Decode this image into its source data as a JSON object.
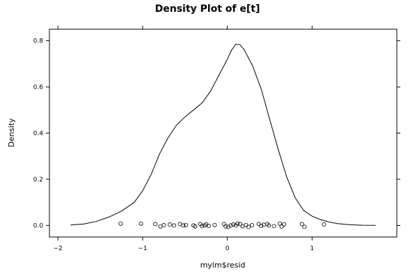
{
  "chart_data": {
    "type": "density",
    "title": "Density Plot of e[t]",
    "xlabel": "mylm$resid",
    "ylabel": "Density",
    "xlim": [
      -2.1,
      2.0
    ],
    "ylim": [
      -0.05,
      0.85
    ],
    "x_ticks": [
      {
        "value": -2,
        "label": "−2"
      },
      {
        "value": -1,
        "label": "−1"
      },
      {
        "value": 0,
        "label": "0"
      },
      {
        "value": 1,
        "label": "1"
      }
    ],
    "y_ticks": [
      {
        "value": 0.0,
        "label": "0.0"
      },
      {
        "value": 0.2,
        "label": "0.2"
      },
      {
        "value": 0.4,
        "label": "0.4"
      },
      {
        "value": 0.6,
        "label": "0.6"
      },
      {
        "value": 0.8,
        "label": "0.8"
      }
    ],
    "density_curve": {
      "x": [
        -1.85,
        -1.7,
        -1.55,
        -1.4,
        -1.25,
        -1.1,
        -1.0,
        -0.9,
        -0.8,
        -0.7,
        -0.6,
        -0.5,
        -0.4,
        -0.3,
        -0.2,
        -0.1,
        0.0,
        0.05,
        0.1,
        0.15,
        0.2,
        0.3,
        0.4,
        0.5,
        0.6,
        0.7,
        0.8,
        0.9,
        1.0,
        1.1,
        1.2,
        1.3,
        1.45,
        1.6,
        1.75
      ],
      "y": [
        0.002,
        0.006,
        0.017,
        0.036,
        0.062,
        0.1,
        0.15,
        0.22,
        0.31,
        0.38,
        0.435,
        0.47,
        0.5,
        0.53,
        0.58,
        0.65,
        0.72,
        0.76,
        0.785,
        0.783,
        0.76,
        0.69,
        0.59,
        0.46,
        0.33,
        0.21,
        0.12,
        0.065,
        0.04,
        0.025,
        0.015,
        0.008,
        0.003,
        0.001,
        0.0003
      ]
    },
    "rug_points": [
      {
        "x": -1.26,
        "y": 0.008
      },
      {
        "x": -1.02,
        "y": 0.008
      },
      {
        "x": -0.85,
        "y": 0.006
      },
      {
        "x": -0.79,
        "y": -0.004
      },
      {
        "x": -0.75,
        "y": 0.001
      },
      {
        "x": -0.68,
        "y": 0.004
      },
      {
        "x": -0.63,
        "y": 0.0
      },
      {
        "x": -0.56,
        "y": 0.006
      },
      {
        "x": -0.52,
        "y": 0.0
      },
      {
        "x": -0.49,
        "y": 0.002
      },
      {
        "x": -0.4,
        "y": 0.0
      },
      {
        "x": -0.38,
        "y": -0.004
      },
      {
        "x": -0.32,
        "y": 0.006
      },
      {
        "x": -0.3,
        "y": -0.003
      },
      {
        "x": -0.27,
        "y": 0.0
      },
      {
        "x": -0.25,
        "y": 0.004
      },
      {
        "x": -0.22,
        "y": -0.002
      },
      {
        "x": -0.15,
        "y": 0.002
      },
      {
        "x": -0.04,
        "y": 0.006
      },
      {
        "x": -0.02,
        "y": -0.004
      },
      {
        "x": 0.01,
        "y": -0.006
      },
      {
        "x": 0.04,
        "y": 0.0
      },
      {
        "x": 0.07,
        "y": 0.004
      },
      {
        "x": 0.1,
        "y": 0.0
      },
      {
        "x": 0.12,
        "y": 0.008
      },
      {
        "x": 0.15,
        "y": 0.006
      },
      {
        "x": 0.18,
        "y": -0.003
      },
      {
        "x": 0.22,
        "y": 0.002
      },
      {
        "x": 0.25,
        "y": -0.006
      },
      {
        "x": 0.29,
        "y": 0.001
      },
      {
        "x": 0.37,
        "y": 0.006
      },
      {
        "x": 0.4,
        "y": -0.002
      },
      {
        "x": 0.43,
        "y": 0.003
      },
      {
        "x": 0.47,
        "y": 0.006
      },
      {
        "x": 0.49,
        "y": 0.0
      },
      {
        "x": 0.55,
        "y": -0.003
      },
      {
        "x": 0.62,
        "y": 0.008
      },
      {
        "x": 0.64,
        "y": -0.004
      },
      {
        "x": 0.67,
        "y": 0.005
      },
      {
        "x": 0.88,
        "y": 0.006
      },
      {
        "x": 0.91,
        "y": -0.006
      },
      {
        "x": 1.14,
        "y": 0.004
      }
    ],
    "grid": false,
    "legend": "none"
  }
}
